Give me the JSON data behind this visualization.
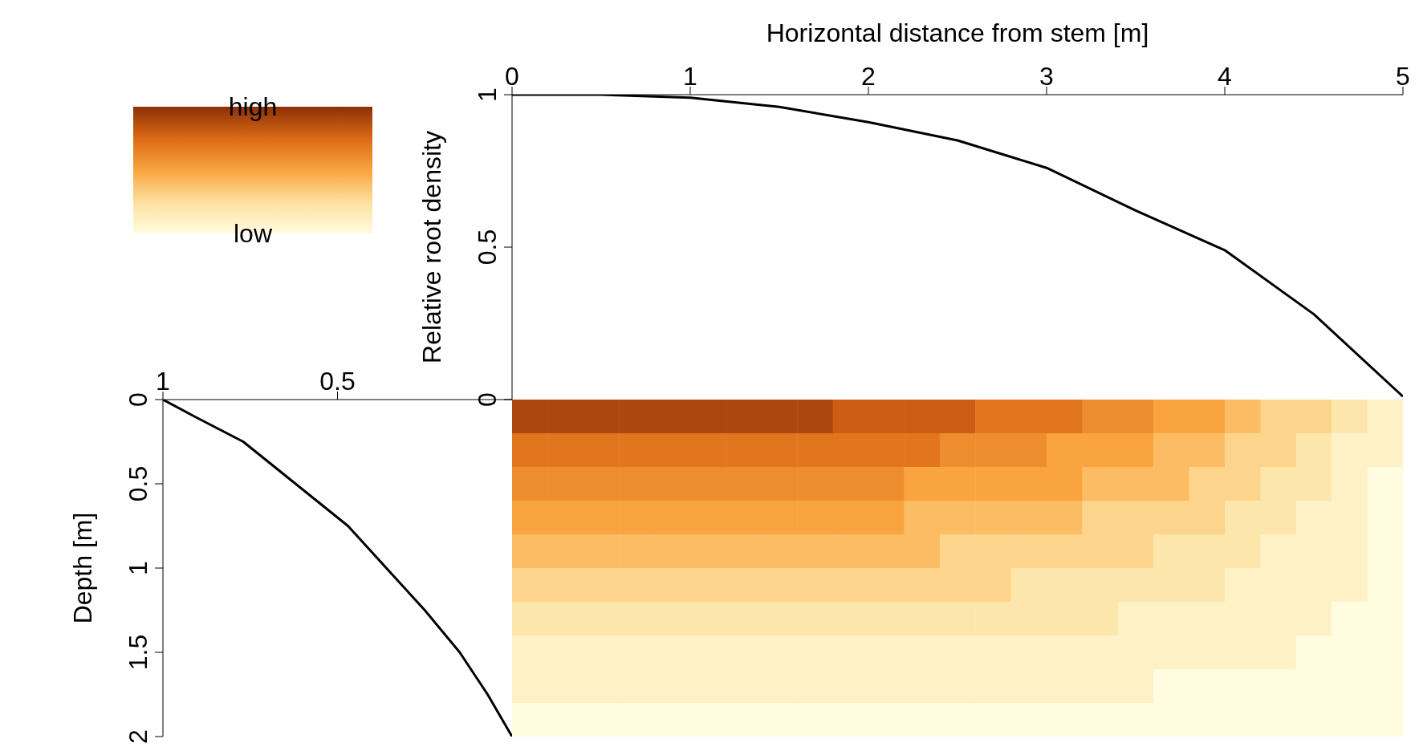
{
  "chart_data": [
    {
      "type": "line",
      "xlabel": "Horizontal distance from stem [m]",
      "ylabel": "Relative root density",
      "x": [
        0,
        0.5,
        1,
        1.5,
        2,
        2.5,
        3,
        3.5,
        4,
        4.5,
        5
      ],
      "values": [
        1,
        1,
        0.99,
        0.96,
        0.91,
        0.85,
        0.76,
        0.62,
        0.49,
        0.28,
        0.01
      ],
      "color": "#000000",
      "xlim": [
        0,
        5
      ],
      "xticks": [
        0,
        1,
        2,
        3,
        4,
        5
      ],
      "ylim": [
        0,
        1
      ],
      "yticks": [
        0,
        0.5,
        1
      ]
    },
    {
      "type": "line",
      "ylabel": "Depth [m]",
      "x": [
        1,
        0.91,
        0.77,
        0.62,
        0.47,
        0.36,
        0.25,
        0.15,
        0.07,
        0
      ],
      "values": [
        0,
        0.1,
        0.25,
        0.5,
        0.75,
        1,
        1.25,
        1.5,
        1.75,
        2
      ],
      "color": "#000000",
      "xlim": [
        1,
        0
      ],
      "xticks": [
        1,
        0.5
      ],
      "ylim": [
        2,
        0
      ],
      "yticks": [
        0,
        0.5,
        1,
        1.5,
        2
      ]
    },
    {
      "type": "heatmap",
      "categories": [
        null,
        null,
        null,
        null,
        null,
        null,
        null,
        null,
        null,
        null,
        null,
        null,
        null,
        null,
        null,
        null,
        null,
        null,
        null,
        null,
        null,
        null,
        null,
        null,
        null
      ],
      "y_categories": [
        null,
        null,
        null,
        null,
        null,
        null,
        null,
        null,
        null,
        null
      ],
      "clim": [
        0,
        1
      ],
      "cticks": [
        {
          "value": 0,
          "label": "low"
        },
        {
          "value": 1,
          "label": "high"
        }
      ],
      "cells": [
        [
          0.9,
          0.9,
          0.9,
          0.9,
          0.9,
          0.9,
          0.9,
          0.9,
          0.9,
          0.8,
          0.8,
          0.8,
          0.8,
          0.7,
          0.7,
          0.7,
          0.6,
          0.6,
          0.5,
          0.5,
          0.4,
          0.3,
          0.3,
          0.2,
          0.1
        ],
        [
          0.7,
          0.7,
          0.7,
          0.7,
          0.7,
          0.7,
          0.7,
          0.7,
          0.7,
          0.7,
          0.7,
          0.7,
          0.6,
          0.6,
          0.6,
          0.5,
          0.5,
          0.5,
          0.4,
          0.4,
          0.3,
          0.3,
          0.2,
          0.1,
          0.1
        ],
        [
          0.6,
          0.6,
          0.6,
          0.6,
          0.6,
          0.6,
          0.6,
          0.6,
          0.6,
          0.6,
          0.6,
          0.5,
          0.5,
          0.5,
          0.5,
          0.5,
          0.4,
          0.4,
          0.4,
          0.3,
          0.3,
          0.2,
          0.2,
          0.1,
          0
        ],
        [
          0.5,
          0.5,
          0.5,
          0.5,
          0.5,
          0.5,
          0.5,
          0.5,
          0.5,
          0.5,
          0.5,
          0.4,
          0.4,
          0.4,
          0.4,
          0.4,
          0.3,
          0.3,
          0.3,
          0.3,
          0.2,
          0.2,
          0.1,
          0.1,
          0
        ],
        [
          0.4,
          0.4,
          0.4,
          0.4,
          0.4,
          0.4,
          0.4,
          0.4,
          0.4,
          0.4,
          0.4,
          0.4,
          0.3,
          0.3,
          0.3,
          0.3,
          0.3,
          0.3,
          0.2,
          0.2,
          0.2,
          0.1,
          0.1,
          0.1,
          0
        ],
        [
          0.3,
          0.3,
          0.3,
          0.3,
          0.3,
          0.3,
          0.3,
          0.3,
          0.3,
          0.3,
          0.3,
          0.3,
          0.3,
          0.3,
          0.2,
          0.2,
          0.2,
          0.2,
          0.2,
          0.2,
          0.1,
          0.1,
          0.1,
          0.1,
          0
        ],
        [
          0.2,
          0.2,
          0.2,
          0.2,
          0.2,
          0.2,
          0.2,
          0.2,
          0.2,
          0.2,
          0.2,
          0.2,
          0.2,
          0.2,
          0.2,
          0.2,
          0.2,
          0.1,
          0.1,
          0.1,
          0.1,
          0.1,
          0.1,
          0,
          0
        ],
        [
          0.1,
          0.1,
          0.1,
          0.1,
          0.1,
          0.1,
          0.1,
          0.1,
          0.1,
          0.1,
          0.1,
          0.1,
          0.1,
          0.1,
          0.1,
          0.1,
          0.1,
          0.1,
          0.1,
          0.1,
          0.1,
          0.1,
          0,
          0,
          0
        ],
        [
          0.1,
          0.1,
          0.1,
          0.1,
          0.1,
          0.1,
          0.1,
          0.1,
          0.1,
          0.1,
          0.1,
          0.1,
          0.1,
          0.1,
          0.1,
          0.1,
          0.1,
          0.1,
          0,
          0,
          0,
          0,
          0,
          0,
          0
        ],
        [
          0,
          0,
          0,
          0,
          0,
          0,
          0,
          0,
          0,
          0,
          0,
          0,
          0,
          0,
          0,
          0,
          0,
          0,
          0,
          0,
          0,
          0,
          0,
          0,
          0
        ]
      ]
    }
  ]
}
